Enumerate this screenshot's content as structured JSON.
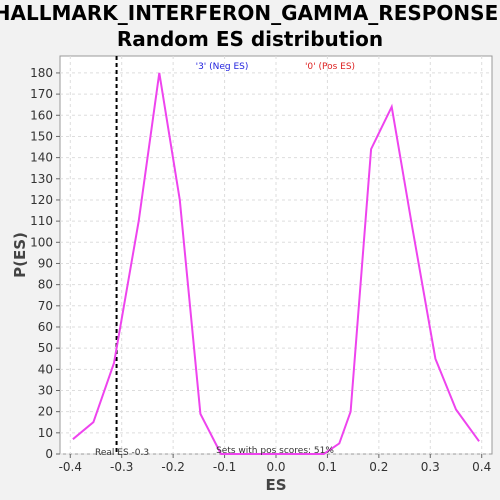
{
  "chart_data": {
    "type": "line",
    "title_line1": "HALLMARK_INTERFERON_GAMMA_RESPONSE:",
    "title_line2": "Random ES distribution",
    "xlabel": "ES",
    "ylabel": "P(ES)",
    "xlim": [
      -0.42,
      0.42
    ],
    "ylim": [
      0,
      188
    ],
    "x_ticks": [
      -0.4,
      -0.3,
      -0.2,
      -0.1,
      0.0,
      0.1,
      0.2,
      0.3,
      0.4
    ],
    "x_tick_labels": [
      "-0.4",
      "-0.3",
      "-0.2",
      "-0.1",
      "0.0",
      "0.1",
      "0.2",
      "0.3",
      "0.4"
    ],
    "y_ticks": [
      0,
      10,
      20,
      30,
      40,
      50,
      60,
      70,
      80,
      90,
      100,
      110,
      120,
      130,
      140,
      150,
      160,
      170,
      180
    ],
    "y_tick_labels": [
      "0",
      "10",
      "20",
      "30",
      "40",
      "50",
      "60",
      "70",
      "80",
      "90",
      "100",
      "110",
      "120",
      "130",
      "140",
      "150",
      "160",
      "170",
      "180"
    ],
    "grid": true,
    "series": [
      {
        "color": "#ee44ee",
        "x": [
          -0.395,
          -0.355,
          -0.315,
          -0.267,
          -0.227,
          -0.187,
          -0.147,
          -0.107,
          -0.067,
          -0.027,
          0.013,
          0.053,
          0.093,
          0.123,
          0.145,
          0.185,
          0.225,
          0.265,
          0.31,
          0.35,
          0.395
        ],
        "y": [
          7,
          15,
          43,
          110,
          180,
          120,
          19,
          0,
          0,
          0,
          0,
          0,
          0,
          5,
          20,
          144,
          164,
          107,
          45,
          21,
          6
        ]
      }
    ],
    "real_es": {
      "value": -0.31,
      "label": "Real ES -0.3"
    },
    "annotations": {
      "neg_label": "'3' (Neg ES)",
      "neg_color": "#2222dd",
      "pos_label": "'0' (Pos ES)",
      "pos_color": "#dd2222",
      "pos_scores_label": "Sets with pos scores: 51%"
    }
  }
}
